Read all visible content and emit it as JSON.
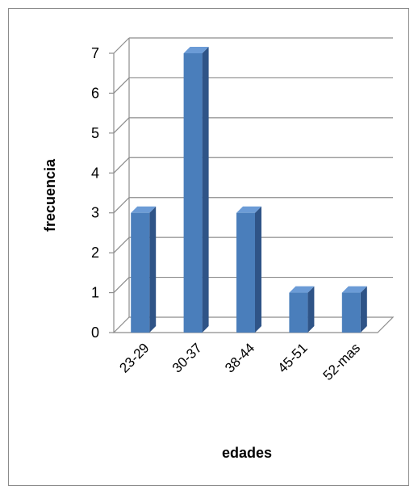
{
  "chart_data": {
    "type": "bar",
    "title": "",
    "xlabel": "edades",
    "ylabel": "frecuencia",
    "categories": [
      "23-29",
      "30-37",
      "38-44",
      "45-51",
      "52-mas"
    ],
    "values": [
      3,
      7,
      3,
      1,
      1
    ],
    "ylim": [
      0,
      7
    ],
    "yticks": [
      0,
      1,
      2,
      3,
      4,
      5,
      6,
      7
    ],
    "grid": true,
    "legend": "none",
    "colors": {
      "bar_front": "#4a7ebb",
      "bar_side": "#2f5487",
      "bar_top": "#6b9bd6",
      "gridline": "#8c8c8c"
    }
  }
}
